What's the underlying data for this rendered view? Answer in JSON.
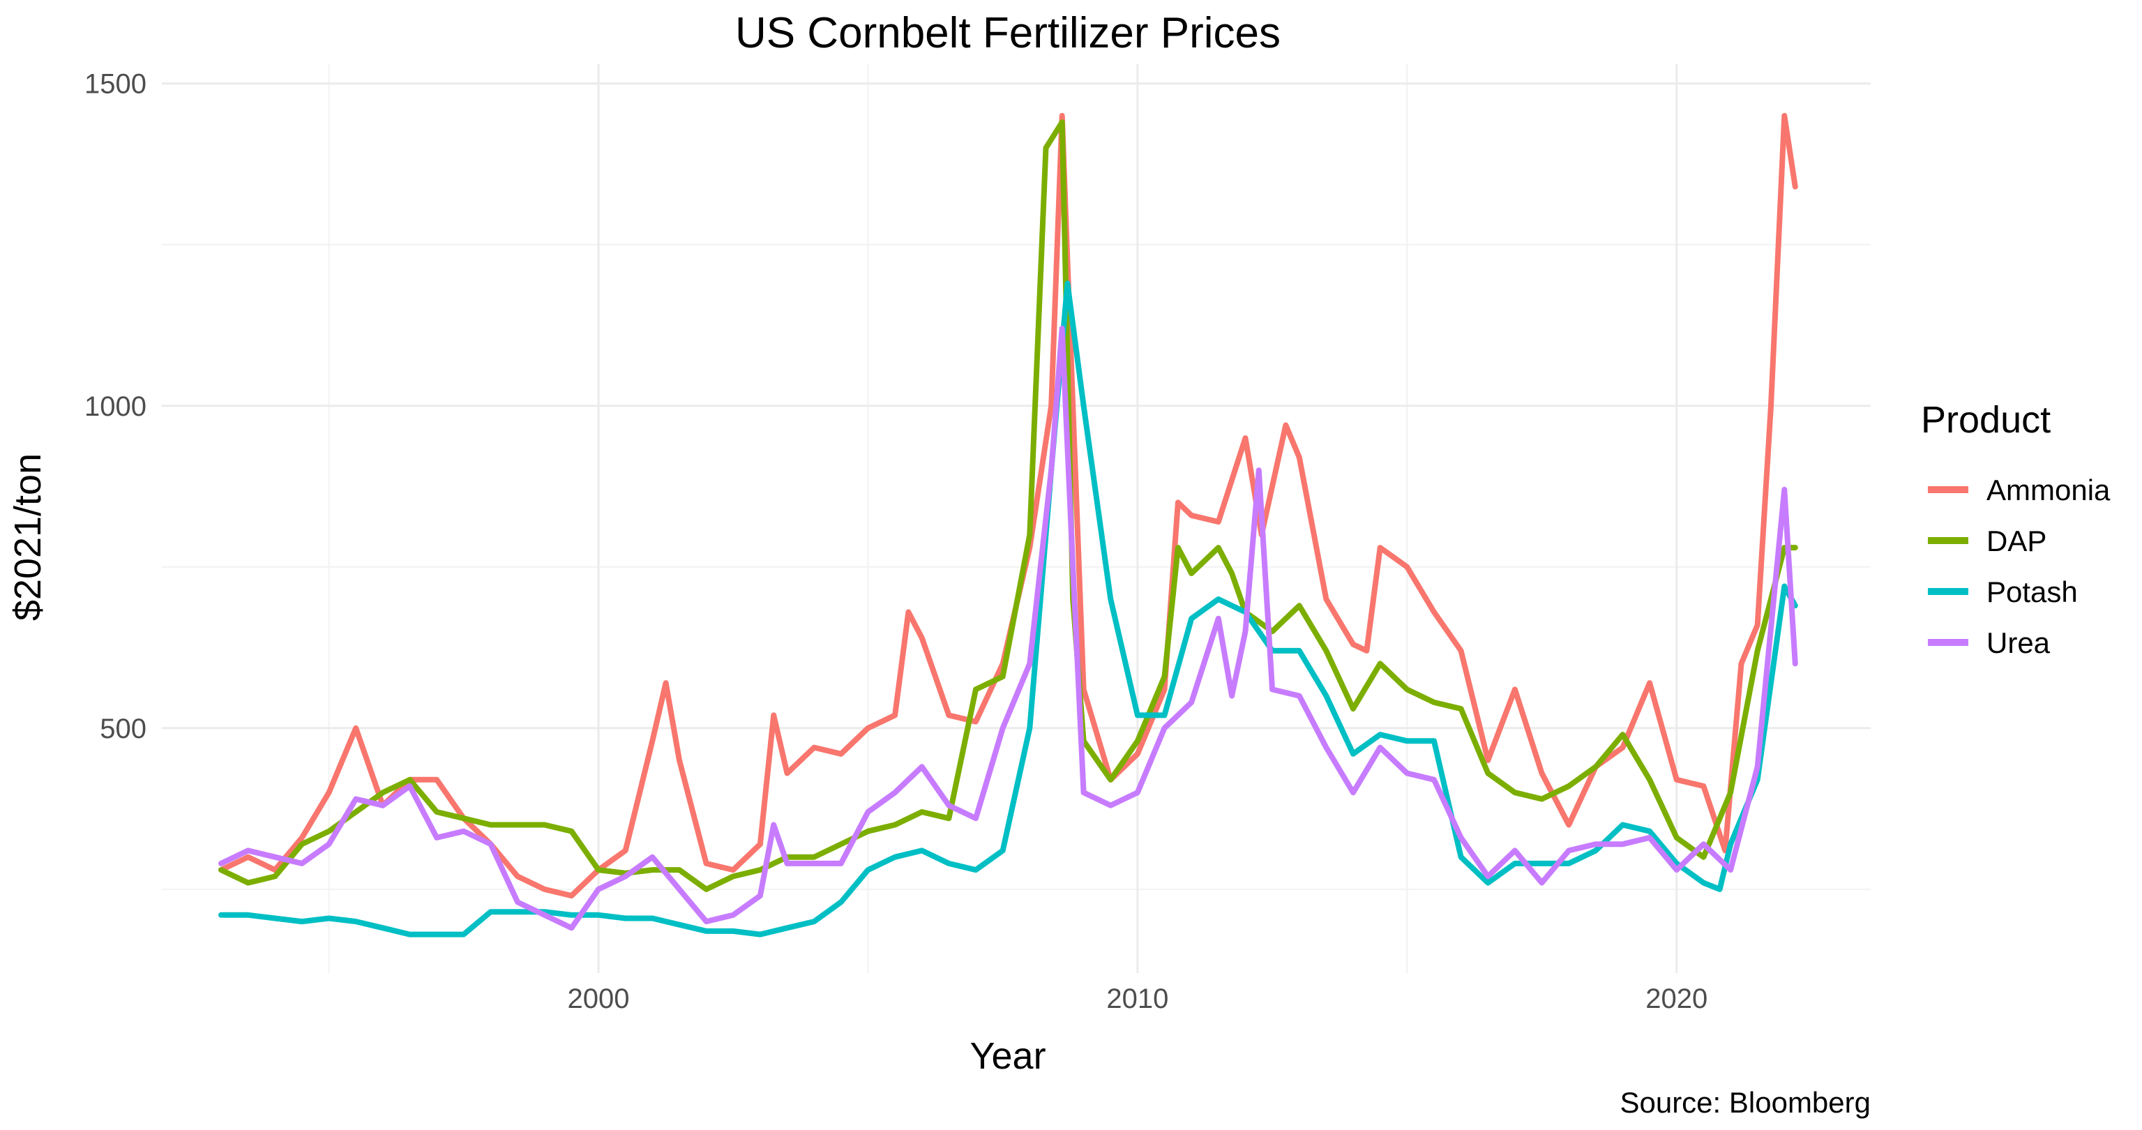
{
  "chart_data": {
    "type": "line",
    "title": "US Cornbelt Fertilizer Prices",
    "xlabel": "Year",
    "ylabel": "$2021/ton",
    "caption": "Source: Bloomberg",
    "legend_title": "Product",
    "legend_position": "right",
    "xlim": [
      1991.9,
      2023.6
    ],
    "ylim": [
      120,
      1530
    ],
    "x_ticks": [
      2000,
      2010,
      2020
    ],
    "x_tick_labels": [
      "2000",
      "2010",
      "2020"
    ],
    "x_minor_ticks": [
      1995,
      2005,
      2015
    ],
    "y_ticks": [
      500,
      1000,
      1500
    ],
    "y_tick_labels": [
      "500",
      "1000",
      "1500"
    ],
    "y_minor_ticks": [
      250,
      750,
      1250
    ],
    "grid": true,
    "series": [
      {
        "name": "Ammonia",
        "color": "#F8766D",
        "x": [
          1993.0,
          1993.5,
          1994.0,
          1994.5,
          1995.0,
          1995.5,
          1996.0,
          1996.5,
          1997.0,
          1997.5,
          1998.0,
          1998.5,
          1999.0,
          1999.5,
          2000.0,
          2000.5,
          2001.0,
          2001.25,
          2001.5,
          2002.0,
          2002.5,
          2003.0,
          2003.25,
          2003.5,
          2004.0,
          2004.5,
          2005.0,
          2005.5,
          2005.75,
          2006.0,
          2006.5,
          2007.0,
          2007.5,
          2008.0,
          2008.4,
          2008.6,
          2008.8,
          2009.0,
          2009.5,
          2010.0,
          2010.5,
          2010.75,
          2011.0,
          2011.5,
          2012.0,
          2012.3,
          2012.75,
          2013.0,
          2013.5,
          2014.0,
          2014.25,
          2014.5,
          2015.0,
          2015.5,
          2016.0,
          2016.5,
          2017.0,
          2017.5,
          2018.0,
          2018.5,
          2019.0,
          2019.5,
          2020.0,
          2020.5,
          2020.9,
          2021.2,
          2021.5,
          2021.75,
          2022.0,
          2022.2
        ],
        "values": [
          280,
          300,
          280,
          330,
          400,
          500,
          380,
          420,
          420,
          360,
          320,
          270,
          250,
          240,
          280,
          310,
          480,
          570,
          450,
          290,
          280,
          320,
          520,
          430,
          470,
          460,
          500,
          520,
          680,
          640,
          520,
          510,
          600,
          780,
          1000,
          1450,
          1000,
          560,
          420,
          460,
          560,
          850,
          830,
          820,
          950,
          800,
          970,
          920,
          700,
          630,
          620,
          780,
          750,
          680,
          620,
          450,
          560,
          430,
          350,
          440,
          470,
          570,
          420,
          410,
          310,
          600,
          660,
          1000,
          1450,
          1340
        ]
      },
      {
        "name": "DAP",
        "color": "#7CAE00",
        "x": [
          1993.0,
          1993.5,
          1994.0,
          1994.5,
          1995.0,
          1995.5,
          1996.0,
          1996.5,
          1997.0,
          1997.5,
          1998.0,
          1998.5,
          1999.0,
          1999.5,
          2000.0,
          2000.5,
          2001.0,
          2001.5,
          2002.0,
          2002.5,
          2003.0,
          2003.5,
          2004.0,
          2004.5,
          2005.0,
          2005.5,
          2006.0,
          2006.5,
          2007.0,
          2007.5,
          2008.0,
          2008.3,
          2008.6,
          2008.8,
          2009.0,
          2009.5,
          2010.0,
          2010.5,
          2010.75,
          2011.0,
          2011.5,
          2011.75,
          2012.0,
          2012.5,
          2013.0,
          2013.5,
          2014.0,
          2014.5,
          2015.0,
          2015.5,
          2016.0,
          2016.5,
          2017.0,
          2017.5,
          2018.0,
          2018.5,
          2019.0,
          2019.5,
          2020.0,
          2020.5,
          2021.0,
          2021.5,
          2022.0,
          2022.2
        ],
        "values": [
          280,
          260,
          270,
          320,
          340,
          370,
          400,
          420,
          370,
          360,
          350,
          350,
          350,
          340,
          280,
          275,
          280,
          280,
          250,
          270,
          280,
          300,
          300,
          320,
          340,
          350,
          370,
          360,
          560,
          580,
          800,
          1400,
          1440,
          700,
          480,
          420,
          480,
          580,
          780,
          740,
          780,
          740,
          680,
          650,
          690,
          620,
          530,
          600,
          560,
          540,
          530,
          430,
          400,
          390,
          410,
          440,
          490,
          420,
          330,
          300,
          400,
          620,
          780,
          780
        ]
      },
      {
        "name": "Potash",
        "color": "#00BFC4",
        "x": [
          1993.0,
          1993.5,
          1994.0,
          1994.5,
          1995.0,
          1995.5,
          1996.0,
          1996.5,
          1997.0,
          1997.5,
          1998.0,
          1998.5,
          1999.0,
          1999.5,
          2000.0,
          2000.5,
          2001.0,
          2001.5,
          2002.0,
          2002.5,
          2003.0,
          2003.5,
          2004.0,
          2004.5,
          2005.0,
          2005.5,
          2006.0,
          2006.5,
          2007.0,
          2007.5,
          2008.0,
          2008.4,
          2008.7,
          2009.0,
          2009.5,
          2010.0,
          2010.5,
          2011.0,
          2011.5,
          2012.0,
          2012.5,
          2013.0,
          2013.5,
          2014.0,
          2014.5,
          2015.0,
          2015.5,
          2016.0,
          2016.5,
          2017.0,
          2017.5,
          2018.0,
          2018.5,
          2019.0,
          2019.5,
          2020.0,
          2020.5,
          2020.8,
          2021.0,
          2021.5,
          2022.0,
          2022.2
        ],
        "values": [
          210,
          210,
          205,
          200,
          205,
          200,
          190,
          180,
          180,
          180,
          215,
          215,
          215,
          210,
          210,
          205,
          205,
          195,
          185,
          185,
          180,
          190,
          200,
          230,
          280,
          300,
          310,
          290,
          280,
          310,
          500,
          900,
          1190,
          1000,
          700,
          520,
          520,
          670,
          700,
          680,
          620,
          620,
          550,
          460,
          490,
          480,
          480,
          300,
          260,
          290,
          290,
          290,
          310,
          350,
          340,
          290,
          260,
          250,
          320,
          420,
          720,
          690
        ]
      },
      {
        "name": "Urea",
        "color": "#C77CFF",
        "x": [
          1993.0,
          1993.5,
          1994.0,
          1994.5,
          1995.0,
          1995.5,
          1996.0,
          1996.5,
          1997.0,
          1997.5,
          1998.0,
          1998.5,
          1999.0,
          1999.5,
          2000.0,
          2000.5,
          2001.0,
          2001.5,
          2002.0,
          2002.5,
          2003.0,
          2003.25,
          2003.5,
          2004.0,
          2004.5,
          2005.0,
          2005.5,
          2006.0,
          2006.5,
          2007.0,
          2007.5,
          2008.0,
          2008.4,
          2008.6,
          2008.8,
          2009.0,
          2009.5,
          2010.0,
          2010.5,
          2011.0,
          2011.5,
          2011.75,
          2012.0,
          2012.25,
          2012.5,
          2013.0,
          2013.5,
          2014.0,
          2014.5,
          2015.0,
          2015.5,
          2016.0,
          2016.5,
          2017.0,
          2017.5,
          2018.0,
          2018.5,
          2019.0,
          2019.5,
          2020.0,
          2020.5,
          2021.0,
          2021.5,
          2022.0,
          2022.2
        ],
        "values": [
          290,
          310,
          300,
          290,
          320,
          390,
          380,
          410,
          330,
          340,
          320,
          230,
          210,
          190,
          250,
          270,
          300,
          250,
          200,
          210,
          240,
          350,
          290,
          290,
          290,
          370,
          400,
          440,
          380,
          360,
          500,
          600,
          900,
          1120,
          750,
          400,
          380,
          400,
          500,
          540,
          670,
          550,
          650,
          900,
          560,
          550,
          470,
          400,
          470,
          430,
          420,
          330,
          270,
          310,
          260,
          310,
          320,
          320,
          330,
          280,
          320,
          280,
          440,
          870,
          600
        ]
      }
    ]
  }
}
